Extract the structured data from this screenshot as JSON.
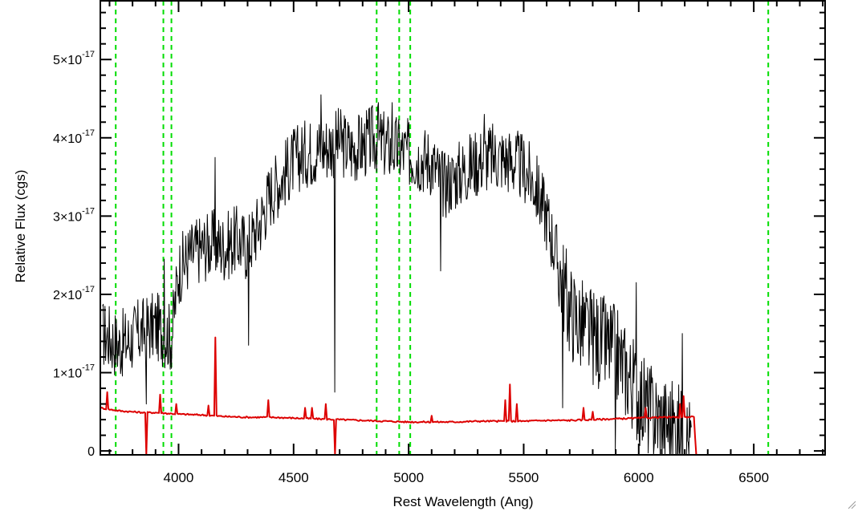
{
  "chart_data": {
    "type": "line",
    "title": "",
    "xlabel": "Rest Wavelength (Ang)",
    "ylabel": "Relative Flux (cgs)",
    "xlim": [
      3660,
      6810
    ],
    "ylim": [
      -5e-19,
      5.75e-17
    ],
    "x_ticks": [
      4000,
      4500,
      5000,
      5500,
      6000,
      6500
    ],
    "x_tick_labels": [
      "4000",
      "4500",
      "5000",
      "5500",
      "6000",
      "6500"
    ],
    "y_ticks": [
      0,
      1e-17,
      2e-17,
      3e-17,
      4e-17,
      5e-17
    ],
    "y_tick_labels": [
      {
        "mantissa": "0",
        "exponent": ""
      },
      {
        "mantissa": "1×10",
        "exponent": "-17"
      },
      {
        "mantissa": "2×10",
        "exponent": "-17"
      },
      {
        "mantissa": "3×10",
        "exponent": "-17"
      },
      {
        "mantissa": "4×10",
        "exponent": "-17"
      },
      {
        "mantissa": "5×10",
        "exponent": "-17"
      }
    ],
    "grid": false,
    "reference_lines_x": [
      3727,
      3934,
      3969,
      4861,
      4959,
      5007,
      6563
    ],
    "series": [
      {
        "color": "#000000",
        "x": [
          3670,
          3700,
          3740,
          3780,
          3820,
          3860,
          3900,
          3940,
          3970,
          4000,
          4050,
          4100,
          4150,
          4200,
          4250,
          4300,
          4350,
          4400,
          4450,
          4500,
          4550,
          4600,
          4650,
          4700,
          4750,
          4800,
          4850,
          4900,
          4950,
          5000,
          5050,
          5100,
          5150,
          5200,
          5250,
          5300,
          5350,
          5400,
          5450,
          5500,
          5550,
          5600,
          5650,
          5700,
          5750,
          5800,
          5850,
          5900,
          5950,
          6000,
          6050,
          6100,
          6150,
          6200,
          6230
        ],
        "y": [
          1.5e-17,
          1.45e-17,
          1.35e-17,
          1.4e-17,
          1.5e-17,
          1.55e-17,
          1.6e-17,
          1.5e-17,
          1.45e-17,
          2.3e-17,
          2.5e-17,
          2.6e-17,
          2.65e-17,
          2.6e-17,
          2.7e-17,
          2.6e-17,
          2.9e-17,
          3.3e-17,
          3.5e-17,
          3.7e-17,
          3.8e-17,
          3.85e-17,
          3.9e-17,
          3.95e-17,
          3.85e-17,
          3.9e-17,
          4e-17,
          3.9e-17,
          3.85e-17,
          3.8e-17,
          3.75e-17,
          3.7e-17,
          3.4e-17,
          3.5e-17,
          3.6e-17,
          3.7e-17,
          3.75e-17,
          3.75e-17,
          3.7e-17,
          3.6e-17,
          3.4e-17,
          3e-17,
          2.4e-17,
          1.8e-17,
          1.6e-17,
          1.45e-17,
          1.35e-17,
          1.25e-17,
          1e-17,
          7e-18,
          5e-18,
          4e-18,
          3e-18,
          2e-18,
          1e-18
        ],
        "features": [
          {
            "x": 3860,
            "y": 6e-18
          },
          {
            "x": 3940,
            "y": 2.45e-17
          },
          {
            "x": 4160,
            "y": 3.75e-17
          },
          {
            "x": 4305,
            "y": 1.35e-17
          },
          {
            "x": 4620,
            "y": 4.55e-17
          },
          {
            "x": 4680,
            "y": 7.5e-18
          },
          {
            "x": 4870,
            "y": 4.45e-17
          },
          {
            "x": 4930,
            "y": 4.45e-17
          },
          {
            "x": 5140,
            "y": 2.3e-17
          },
          {
            "x": 5330,
            "y": 4.3e-17
          },
          {
            "x": 5670,
            "y": 5.5e-18
          },
          {
            "x": 5900,
            "y": 0.0
          },
          {
            "x": 5990,
            "y": 2.15e-17
          },
          {
            "x": 6190,
            "y": 1.5e-17
          }
        ]
      },
      {
        "color": "#dd0000",
        "x": [
          3660,
          3700,
          3750,
          3800,
          3850,
          3900,
          3950,
          4000,
          4100,
          4200,
          4300,
          4400,
          4500,
          4600,
          4700,
          4800,
          4900,
          5000,
          5100,
          5200,
          5300,
          5400,
          5500,
          5600,
          5700,
          5800,
          5900,
          6000,
          6100,
          6200,
          6240,
          6250,
          6810
        ],
        "y": [
          5.5e-18,
          5.3e-18,
          5.1e-18,
          5e-18,
          4.9e-18,
          4.9e-18,
          4.8e-18,
          4.7e-18,
          4.6e-18,
          4.4e-18,
          4.3e-18,
          4.3e-18,
          4.2e-18,
          4.1e-18,
          4e-18,
          3.9e-18,
          3.8e-18,
          3.7e-18,
          3.7e-18,
          3.7e-18,
          3.8e-18,
          3.8e-18,
          3.8e-18,
          3.9e-18,
          3.9e-18,
          4e-18,
          4.1e-18,
          4.2e-18,
          4.3e-18,
          4.3e-18,
          4.4e-18,
          -6e-19,
          -6e-19
        ],
        "features": [
          {
            "x": 3690,
            "y": 7.5e-18
          },
          {
            "x": 3860,
            "y": -1e-18
          },
          {
            "x": 3920,
            "y": 7.2e-18
          },
          {
            "x": 3990,
            "y": 6e-18
          },
          {
            "x": 4130,
            "y": 5.8e-18
          },
          {
            "x": 4160,
            "y": 1.45e-17
          },
          {
            "x": 4390,
            "y": 6.5e-18
          },
          {
            "x": 4550,
            "y": 5.5e-18
          },
          {
            "x": 4580,
            "y": 5.5e-18
          },
          {
            "x": 4640,
            "y": 6e-18
          },
          {
            "x": 4680,
            "y": -1e-18
          },
          {
            "x": 5100,
            "y": 4.5e-18
          },
          {
            "x": 5420,
            "y": 6.5e-18
          },
          {
            "x": 5440,
            "y": 8.5e-18
          },
          {
            "x": 5470,
            "y": 6e-18
          },
          {
            "x": 5760,
            "y": 5.5e-18
          },
          {
            "x": 5800,
            "y": 5e-18
          },
          {
            "x": 6030,
            "y": 5.5e-18
          },
          {
            "x": 6180,
            "y": 6e-18
          },
          {
            "x": 6195,
            "y": 7e-18
          }
        ]
      }
    ],
    "reference_line_color": "#00dd00",
    "axis_color": "#000000"
  }
}
